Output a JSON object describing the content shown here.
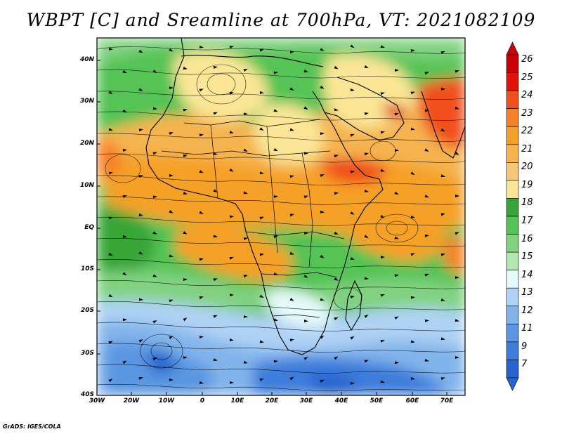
{
  "title": "WBPT [C] and Sreamline at 700hPa, VT: 2021082109",
  "credit": "GrADS: IGES/COLA",
  "lat_labels": [
    "40N",
    "30N",
    "20N",
    "10N",
    "EQ",
    "10S",
    "20S",
    "30S",
    "40S"
  ],
  "lon_labels": [
    "30W",
    "20W",
    "10W",
    "0",
    "10E",
    "20E",
    "30E",
    "40E",
    "50E",
    "60E",
    "70E"
  ],
  "colorbar": {
    "labels": [
      "26",
      "25",
      "24",
      "23",
      "22",
      "21",
      "20",
      "19",
      "18",
      "17",
      "16",
      "15",
      "14",
      "13",
      "12",
      "11",
      "9",
      "7"
    ],
    "colors": [
      "#c8000a",
      "#e0140a",
      "#f0501e",
      "#f58228",
      "#f5a028",
      "#f5b450",
      "#f5c878",
      "#fae696",
      "#37a537",
      "#55c355",
      "#82d282",
      "#b4e6b4",
      "#e6fafa",
      "#afd2f5",
      "#82b4eb",
      "#5a96e1",
      "#3c7ddc",
      "#2864cd"
    ]
  },
  "map": {
    "land_outline_color": "#000000",
    "streamline_color": "#000000"
  }
}
